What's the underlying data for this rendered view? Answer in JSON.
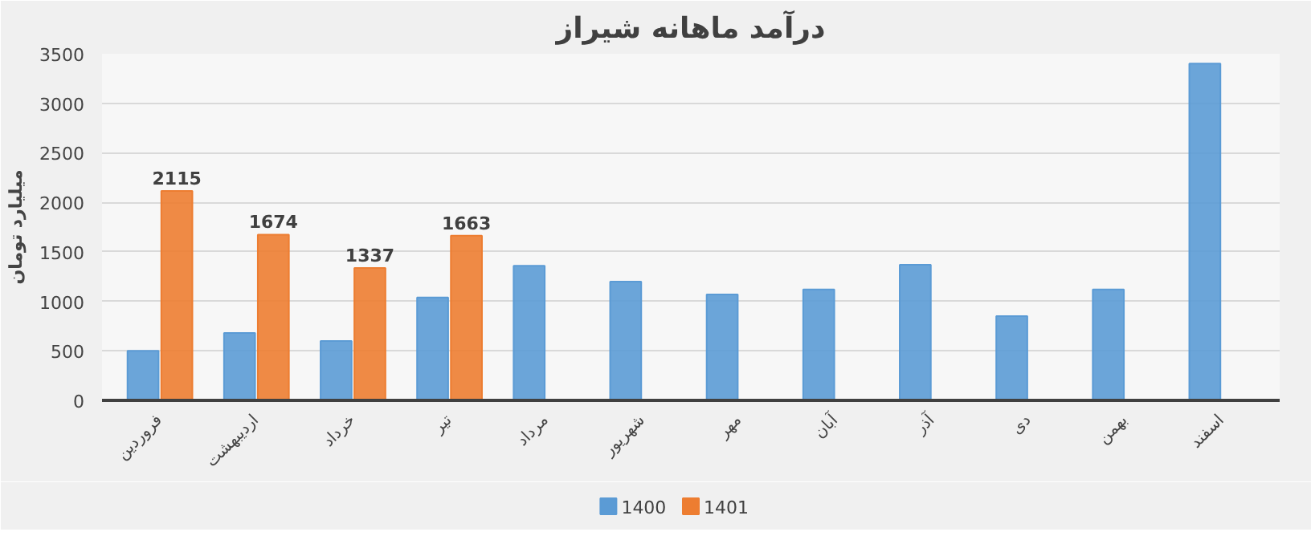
{
  "chart_data": {
    "type": "bar",
    "title": "درآمد ماهانه شیراز",
    "ylabel": "میلیارد تومان",
    "categories": [
      "فروردین",
      "اردیبهشت",
      "خرداد",
      "تیر",
      "مرداد",
      "شهریور",
      "مهر",
      "آبان",
      "آذر",
      "دی",
      "بهمن",
      "اسفند"
    ],
    "series": [
      {
        "name": "1400",
        "color": "#5b9bd5",
        "values": [
          500,
          680,
          600,
          1040,
          1360,
          1200,
          1070,
          1120,
          1370,
          850,
          1120,
          3400
        ]
      },
      {
        "name": "1401",
        "color": "#ed7d31",
        "values": [
          2115,
          1674,
          1337,
          1663,
          null,
          null,
          null,
          null,
          null,
          null,
          null,
          null
        ],
        "value_labels": [
          "2115",
          "1674",
          "1337",
          "1663",
          null,
          null,
          null,
          null,
          null,
          null,
          null,
          null
        ]
      }
    ],
    "ylim": [
      0,
      3500
    ],
    "yticks": [
      0,
      500,
      1000,
      1500,
      2000,
      2500,
      3000,
      3500
    ],
    "grid": "y",
    "legend": "bottom"
  }
}
